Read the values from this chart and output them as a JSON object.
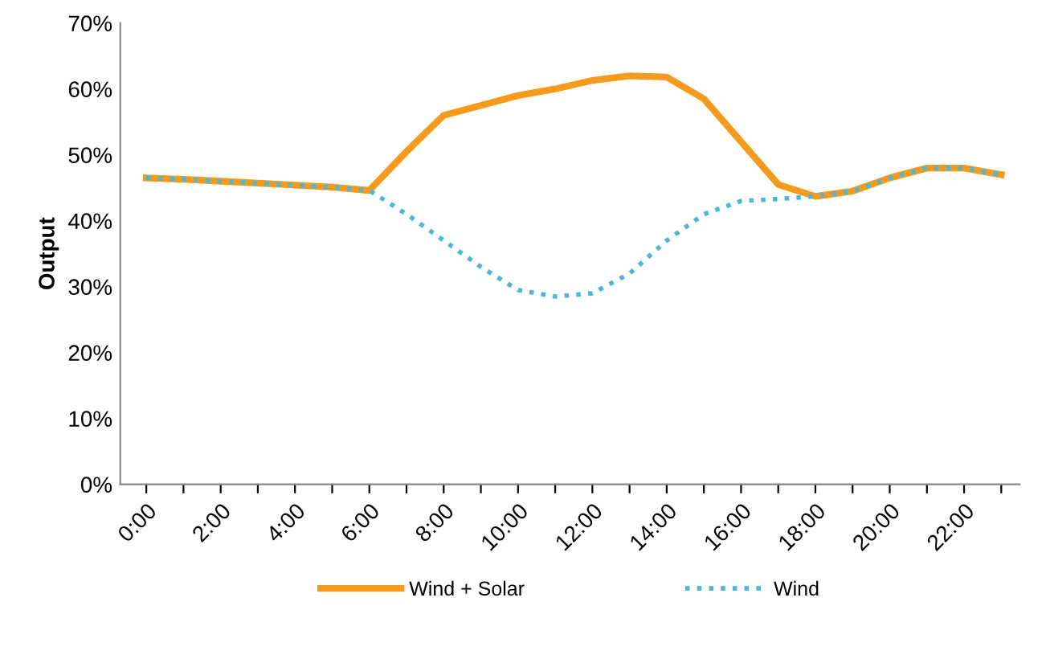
{
  "chart_data": {
    "type": "line",
    "ylabel": "Output",
    "categories": [
      "0:00",
      null,
      "2:00",
      null,
      "4:00",
      null,
      "6:00",
      null,
      "8:00",
      null,
      "10:00",
      null,
      "12:00",
      null,
      "14:00",
      null,
      "16:00",
      null,
      "18:00",
      null,
      "20:00",
      null,
      "22:00",
      null
    ],
    "series": [
      {
        "name": "Wind + Solar",
        "color": "#f59a1d",
        "line_style": "solid",
        "values": [
          46.5,
          46.3,
          46,
          45.7,
          45.4,
          45.1,
          44.6,
          50.5,
          56,
          57.5,
          59,
          60,
          61.3,
          62,
          61.8,
          58.5,
          52,
          45.5,
          43.7,
          44.5,
          46.5,
          48,
          48,
          47
        ]
      },
      {
        "name": "Wind",
        "color": "#4bb8d8",
        "line_style": "dotted",
        "values": [
          46.5,
          46.3,
          46,
          45.7,
          45.4,
          45.1,
          44.6,
          41,
          37,
          33,
          29.5,
          28.5,
          29,
          32,
          37,
          41,
          43,
          43.3,
          43.7,
          44.5,
          46.5,
          48,
          48,
          47
        ]
      }
    ],
    "ylim": [
      0,
      70
    ],
    "yticks": [
      {
        "value": 0,
        "label": "0%"
      },
      {
        "value": 10,
        "label": "10%"
      },
      {
        "value": 20,
        "label": "20%"
      },
      {
        "value": 30,
        "label": "30%"
      },
      {
        "value": 40,
        "label": "40%"
      },
      {
        "value": 50,
        "label": "50%"
      },
      {
        "value": 60,
        "label": "60%"
      },
      {
        "value": 70,
        "label": "70%"
      }
    ],
    "grid": false,
    "legend": "bottom"
  }
}
